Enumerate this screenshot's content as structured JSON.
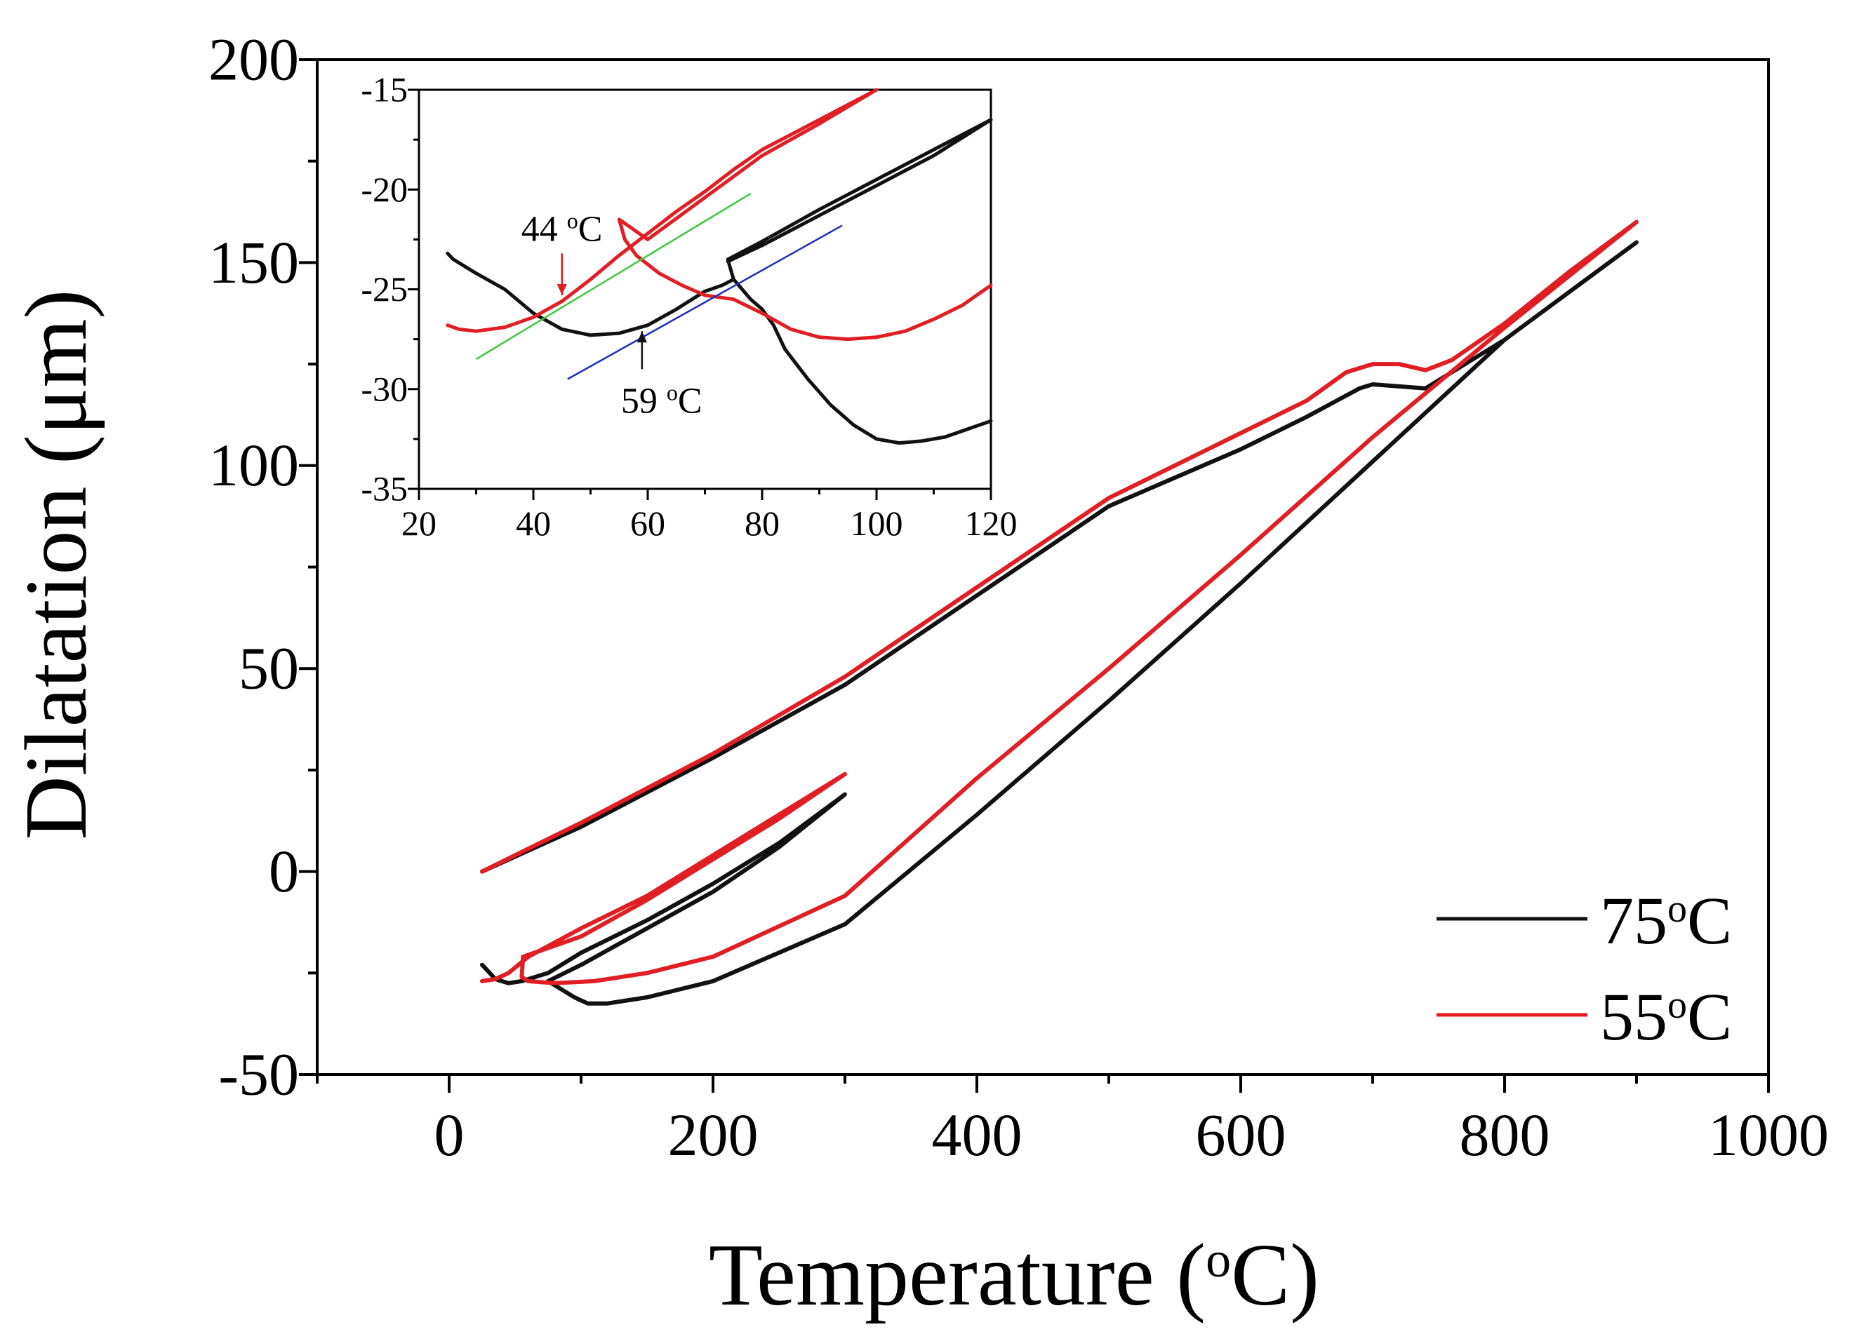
{
  "colors": {
    "black_series": "#111111",
    "red_series": "#e01e24",
    "fit_green": "#3cc83c",
    "fit_blue": "#1c2cc0",
    "axis": "#000000"
  },
  "chart_data": [
    {
      "id": "main",
      "type": "line",
      "title": "",
      "xlabel": "Temperature (",
      "xlabel_sup": "o",
      "xlabel_tail": "C)",
      "ylabel": "Dilatation (μm)",
      "xlim": [
        -100,
        1000
      ],
      "ylim": [
        -50,
        200
      ],
      "xticks": [
        0,
        200,
        400,
        600,
        800,
        1000
      ],
      "yticks": [
        -50,
        0,
        50,
        100,
        150,
        200
      ],
      "xtick_labels": [
        "0",
        "200",
        "400",
        "600",
        "800",
        "1000"
      ],
      "ytick_labels": [
        "-50",
        "0",
        "50",
        "100",
        "150",
        "200"
      ],
      "legend_position": "bottom-right",
      "series": [
        {
          "name": "75",
          "legend_sup": "o",
          "legend_tail": "C",
          "color_key": "black_series",
          "points": [
            [
              25,
              0
            ],
            [
              100,
              11
            ],
            [
              200,
              28
            ],
            [
              300,
              46
            ],
            [
              400,
              68
            ],
            [
              500,
              90
            ],
            [
              600,
              104
            ],
            [
              650,
              112
            ],
            [
              690,
              119
            ],
            [
              700,
              120
            ],
            [
              720,
              119.5
            ],
            [
              740,
              119
            ],
            [
              760,
              123
            ],
            [
              780,
              127
            ],
            [
              800,
              131
            ],
            [
              850,
              143
            ],
            [
              900,
              155
            ],
            [
              800,
              131
            ],
            [
              700,
              101
            ],
            [
              600,
              71
            ],
            [
              500,
              42
            ],
            [
              400,
              14
            ],
            [
              300,
              -13
            ],
            [
              200,
              -27
            ],
            [
              150,
              -31
            ],
            [
              120,
              -32.5
            ],
            [
              105,
              -32.5
            ],
            [
              95,
              -31
            ],
            [
              80,
              -28
            ],
            [
              75,
              -27
            ],
            [
              100,
              -23
            ],
            [
              150,
              -14
            ],
            [
              200,
              -5
            ],
            [
              250,
              6
            ],
            [
              300,
              19
            ],
            [
              250,
              7
            ],
            [
              200,
              -3
            ],
            [
              150,
              -12
            ],
            [
              100,
              -20
            ],
            [
              75,
              -25
            ],
            [
              55,
              -27
            ],
            [
              45,
              -27.5
            ],
            [
              35,
              -26.5
            ],
            [
              28,
              -24
            ],
            [
              25,
              -23
            ]
          ]
        },
        {
          "name": "55",
          "legend_sup": "o",
          "legend_tail": "C",
          "color_key": "red_series",
          "points": [
            [
              25,
              0
            ],
            [
              100,
              12
            ],
            [
              200,
              29
            ],
            [
              300,
              48
            ],
            [
              400,
              70
            ],
            [
              500,
              92
            ],
            [
              600,
              108
            ],
            [
              650,
              116
            ],
            [
              680,
              123
            ],
            [
              700,
              125
            ],
            [
              720,
              125
            ],
            [
              740,
              123.5
            ],
            [
              760,
              126
            ],
            [
              800,
              135
            ],
            [
              850,
              148
            ],
            [
              900,
              160
            ],
            [
              800,
              134
            ],
            [
              700,
              107
            ],
            [
              600,
              78
            ],
            [
              500,
              50
            ],
            [
              400,
              23
            ],
            [
              300,
              -6
            ],
            [
              200,
              -21
            ],
            [
              150,
              -25
            ],
            [
              110,
              -27
            ],
            [
              80,
              -27.5
            ],
            [
              60,
              -27
            ],
            [
              55,
              -26
            ],
            [
              56,
              -21
            ],
            [
              100,
              -16
            ],
            [
              150,
              -7
            ],
            [
              200,
              3
            ],
            [
              250,
              13
            ],
            [
              300,
              24
            ],
            [
              250,
              14
            ],
            [
              200,
              4
            ],
            [
              150,
              -6
            ],
            [
              100,
              -14
            ],
            [
              60,
              -21
            ],
            [
              45,
              -25
            ],
            [
              35,
              -26.5
            ],
            [
              25,
              -27
            ]
          ]
        }
      ]
    },
    {
      "id": "inset",
      "type": "line",
      "title": "",
      "xlabel": "",
      "ylabel": "",
      "xlim": [
        20,
        120
      ],
      "ylim": [
        -35,
        -15
      ],
      "xticks": [
        20,
        40,
        60,
        80,
        100,
        120
      ],
      "yticks": [
        -35,
        -30,
        -25,
        -20,
        -15
      ],
      "xtick_labels": [
        "20",
        "40",
        "60",
        "80",
        "100",
        "120"
      ],
      "ytick_labels": [
        "-35",
        "-30",
        "-25",
        "-20",
        "-15"
      ],
      "series": [
        {
          "name": "75°C",
          "color_key": "black_series",
          "points": [
            [
              25,
              -23.2
            ],
            [
              26,
              -23.5
            ],
            [
              30,
              -24.2
            ],
            [
              35,
              -25
            ],
            [
              40,
              -26.2
            ],
            [
              45,
              -27
            ],
            [
              50,
              -27.3
            ],
            [
              55,
              -27.2
            ],
            [
              60,
              -26.8
            ],
            [
              65,
              -26
            ],
            [
              70,
              -25.1
            ],
            [
              73,
              -24.8
            ],
            [
              75,
              -24.5
            ],
            [
              78,
              -25.5
            ],
            [
              80,
              -26
            ],
            [
              82,
              -26.8
            ],
            [
              84,
              -28
            ],
            [
              88,
              -29.5
            ],
            [
              92,
              -30.8
            ],
            [
              96,
              -31.8
            ],
            [
              100,
              -32.5
            ],
            [
              104,
              -32.7
            ],
            [
              108,
              -32.6
            ],
            [
              112,
              -32.4
            ],
            [
              116,
              -32
            ],
            [
              120,
              -31.6
            ],
            [
              116,
              -32
            ],
            [
              112,
              -32.4
            ],
            [
              108,
              -32.6
            ],
            [
              104,
              -32.7
            ],
            [
              100,
              -32.5
            ],
            [
              96,
              -31.8
            ],
            [
              92,
              -30.8
            ],
            [
              88,
              -29.5
            ],
            [
              84,
              -28
            ],
            [
              82,
              -26.8
            ],
            [
              80,
              -26
            ],
            [
              78,
              -25.5
            ],
            [
              75,
              -24.5
            ],
            [
              74,
              -23.5
            ],
            [
              76,
              -23.2
            ],
            [
              80,
              -22.6
            ],
            [
              90,
              -21
            ],
            [
              100,
              -19.5
            ],
            [
              110,
              -18
            ],
            [
              120,
              -16.5
            ],
            [
              110,
              -18.3
            ],
            [
              100,
              -19.8
            ],
            [
              90,
              -21.3
            ],
            [
              80,
              -22.8
            ],
            [
              74,
              -23.6
            ]
          ]
        },
        {
          "name": "55°C",
          "color_key": "red_series",
          "points": [
            [
              25,
              -26.8
            ],
            [
              27,
              -27
            ],
            [
              30,
              -27.1
            ],
            [
              35,
              -26.9
            ],
            [
              40,
              -26.4
            ],
            [
              45,
              -25.6
            ],
            [
              50,
              -24.5
            ],
            [
              55,
              -23.3
            ],
            [
              60,
              -22.2
            ],
            [
              65,
              -21.1
            ],
            [
              70,
              -20.1
            ],
            [
              75,
              -19
            ],
            [
              80,
              -18
            ],
            [
              90,
              -16.5
            ],
            [
              100,
              -15
            ],
            [
              90,
              -16.7
            ],
            [
              80,
              -18.3
            ],
            [
              70,
              -20.4
            ],
            [
              60,
              -22.5
            ],
            [
              55,
              -21.5
            ],
            [
              56,
              -22.5
            ],
            [
              58,
              -23.3
            ],
            [
              62,
              -24.2
            ],
            [
              66,
              -24.8
            ],
            [
              70,
              -25.3
            ],
            [
              75,
              -25.5
            ],
            [
              80,
              -26.2
            ],
            [
              85,
              -27
            ],
            [
              90,
              -27.4
            ],
            [
              95,
              -27.5
            ],
            [
              100,
              -27.4
            ],
            [
              105,
              -27.1
            ],
            [
              110,
              -26.5
            ],
            [
              115,
              -25.8
            ],
            [
              120,
              -24.8
            ]
          ]
        }
      ],
      "fit_lines": [
        {
          "name": "fit-green",
          "color_key": "fit_green",
          "from": [
            30,
            -28.5
          ],
          "to": [
            78,
            -20.2
          ]
        },
        {
          "name": "fit-blue",
          "color_key": "fit_blue",
          "from": [
            46,
            -29.5
          ],
          "to": [
            94,
            -21.8
          ]
        }
      ],
      "annotations": [
        {
          "name": "annotation-44",
          "text": "44 ",
          "sup": "o",
          "tail": "C",
          "arrow_x": 45,
          "arrow_from_y": -23.2,
          "arrow_to_y": -25.3,
          "color_key": "red_series"
        },
        {
          "name": "annotation-59",
          "text": "59 ",
          "sup": "o",
          "tail": "C",
          "arrow_x": 59,
          "arrow_from_y": -29.0,
          "arrow_to_y": -27.1,
          "color_key": "black_series"
        }
      ]
    }
  ]
}
